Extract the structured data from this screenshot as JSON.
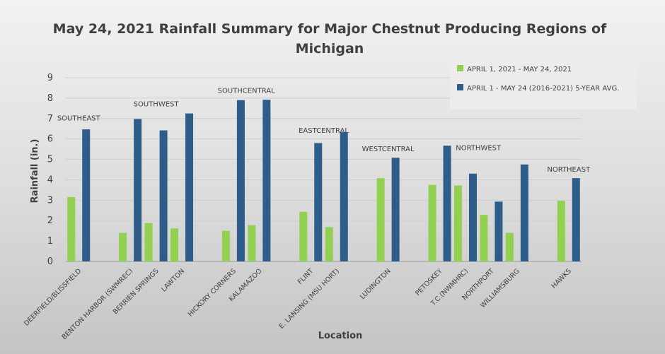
{
  "chart_data": {
    "type": "bar",
    "title_lines": [
      "May 24, 2021 Rainfall Summary for Major Chestnut Producing Regions of",
      "Michigan"
    ],
    "xlabel": "Location",
    "ylabel": "Rainfall (in.)",
    "ylim": [
      0,
      9
    ],
    "yticks": [
      "0",
      "1",
      "2",
      "3",
      "4",
      "5",
      "6",
      "7",
      "8",
      "9"
    ],
    "grid": true,
    "legend_position": "top-right",
    "categories": [
      "DEERFIELD/BLISSFIELD",
      "",
      "BENTON HARBOR (SWMREC)",
      "BERRIEN SPRINGS",
      "LAWTON",
      "",
      "HICKORY CORNERS",
      "KALAMAZOO",
      "",
      "FLINT",
      "E. LANSING (MSU HORT)",
      "",
      "LUDINGTON",
      "",
      "PETOSKEY",
      "T.C.(NWMHRC)",
      "NORTHPORT",
      "WILLIAMSBURG",
      "",
      "HAWKS"
    ],
    "series": [
      {
        "name": "APRIL 1, 2021 - MAY 24, 2021",
        "color": "#92d050",
        "values": [
          3.15,
          null,
          1.4,
          1.88,
          1.62,
          null,
          1.5,
          1.78,
          null,
          2.43,
          1.68,
          null,
          4.08,
          null,
          3.75,
          3.72,
          2.28,
          1.4,
          null,
          2.97
        ]
      },
      {
        "name": "APRIL 1 - MAY 24 (2016-2021) 5-YEAR AVG.",
        "color": "#2e5d8a",
        "values": [
          6.47,
          null,
          6.98,
          6.42,
          7.25,
          null,
          7.9,
          7.92,
          null,
          5.8,
          6.33,
          null,
          5.08,
          null,
          5.67,
          4.3,
          2.93,
          4.75,
          null,
          4.08
        ]
      }
    ],
    "annotations": [
      {
        "text": "SOUTHEAST",
        "category_index": 0,
        "value": 6.9
      },
      {
        "text": "SOUTHWEST",
        "category_index": 3,
        "value": 7.6
      },
      {
        "text": "SOUTHCENTRAL",
        "category_index": 6.5,
        "value": 8.25
      },
      {
        "text": "EASTCENTRAL",
        "category_index": 9.5,
        "value": 6.3
      },
      {
        "text": "WESTCENTRAL",
        "category_index": 12,
        "value": 5.4
      },
      {
        "text": "NORTHWEST",
        "category_index": 15.5,
        "value": 5.45
      },
      {
        "text": "NORTHEAST",
        "category_index": 19,
        "value": 4.4
      }
    ]
  }
}
